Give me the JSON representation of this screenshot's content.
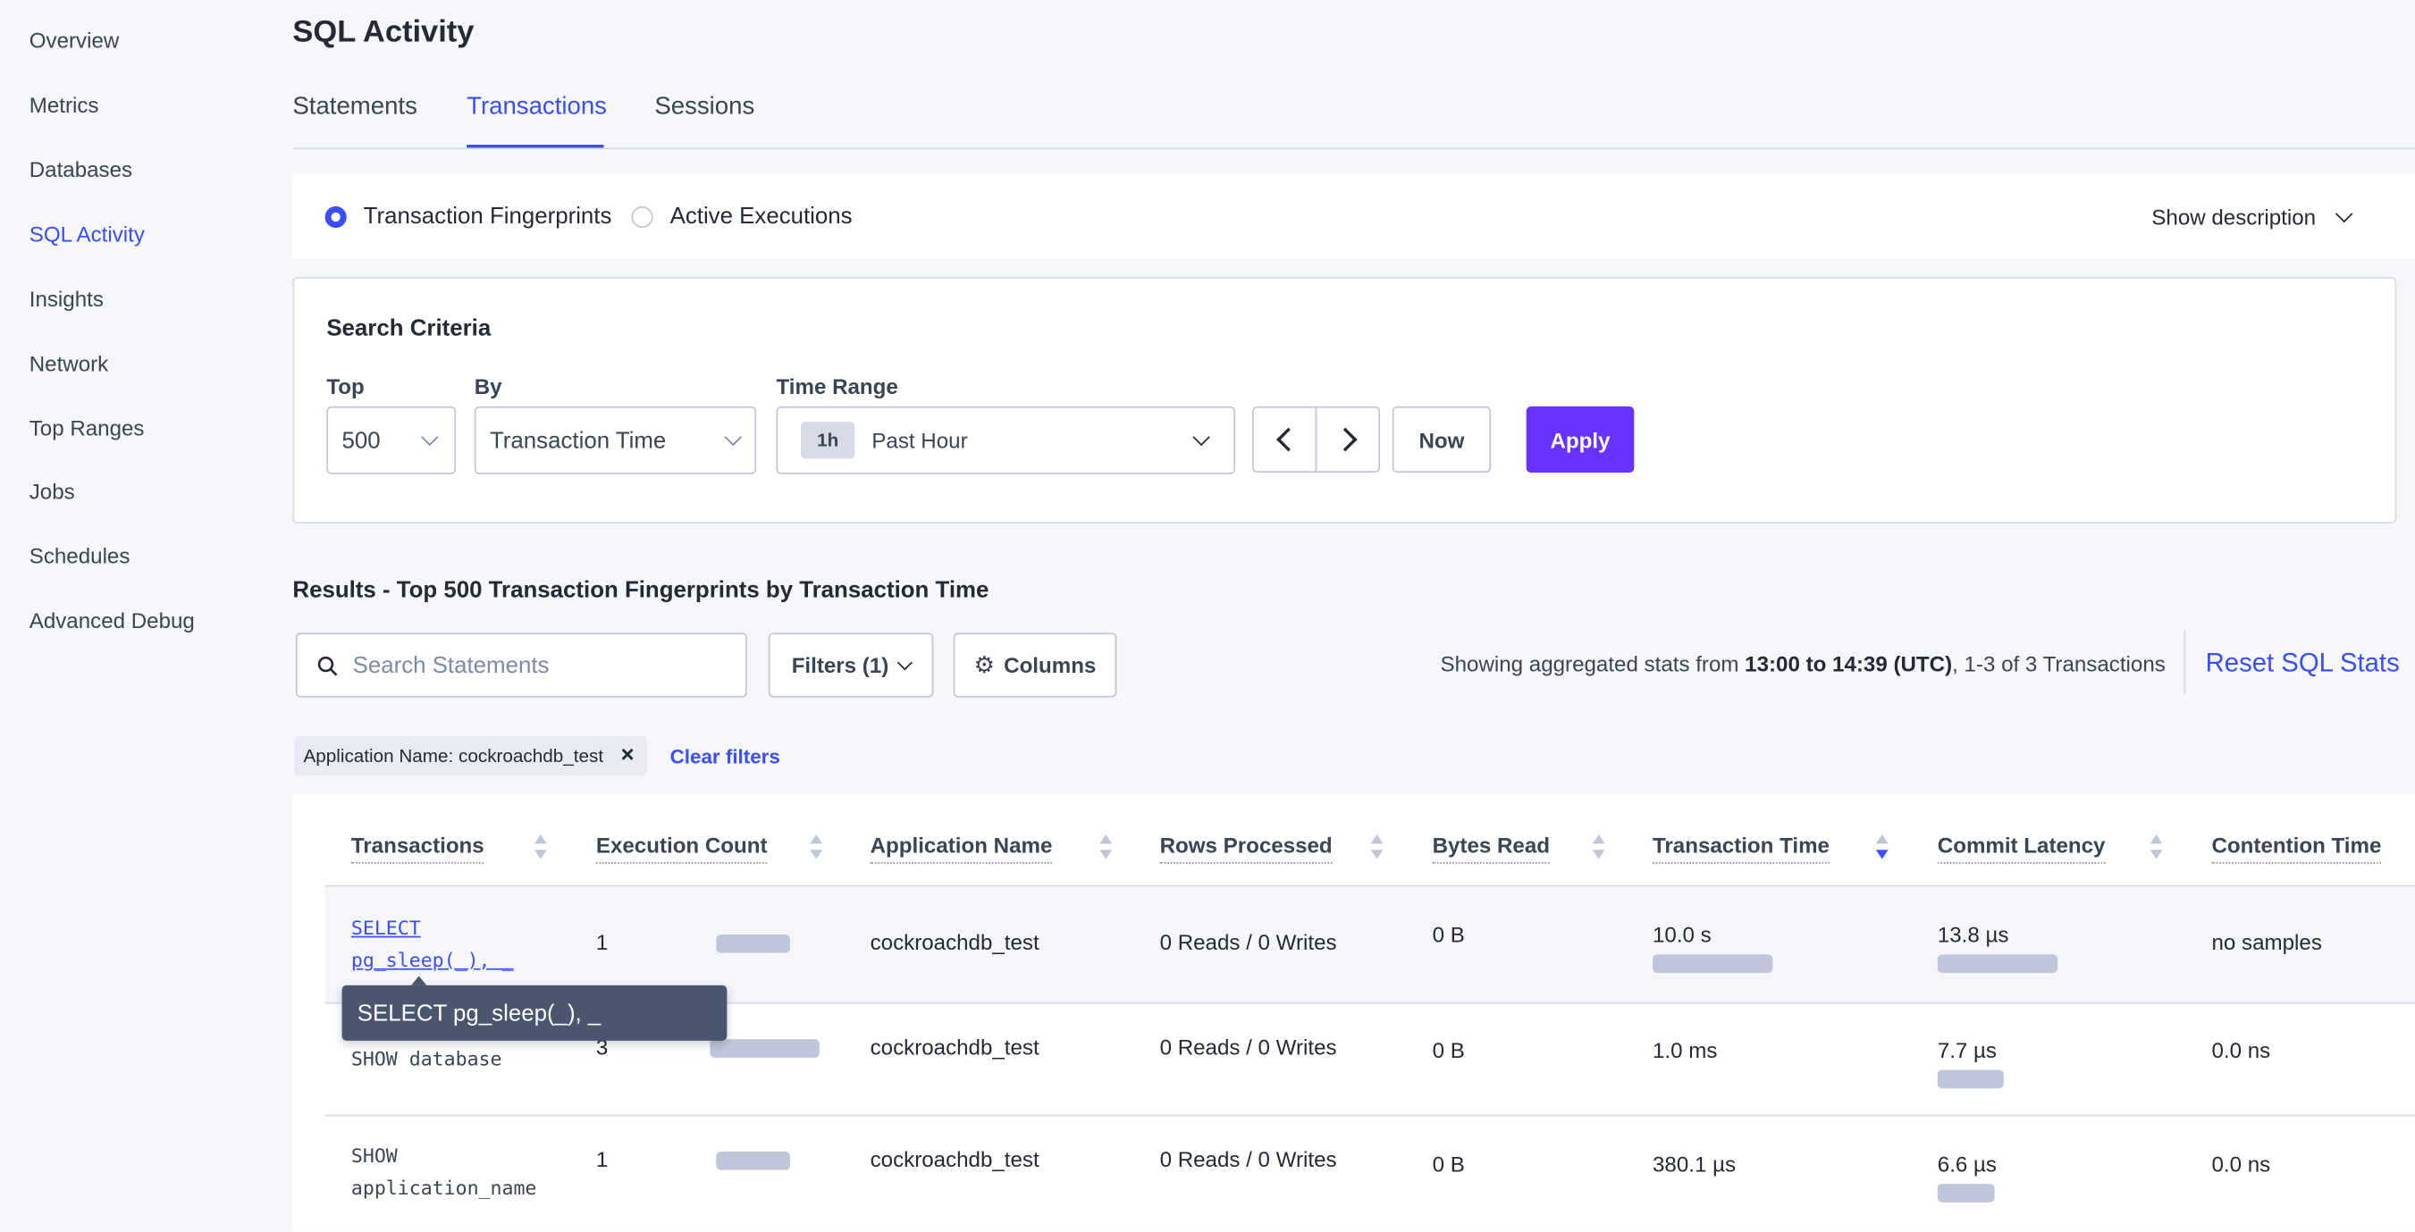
{
  "sidebar": {
    "items": [
      {
        "label": "Overview"
      },
      {
        "label": "Metrics"
      },
      {
        "label": "Databases"
      },
      {
        "label": "SQL Activity",
        "active": true
      },
      {
        "label": "Insights"
      },
      {
        "label": "Network"
      },
      {
        "label": "Top Ranges"
      },
      {
        "label": "Jobs"
      },
      {
        "label": "Schedules"
      },
      {
        "label": "Advanced Debug"
      }
    ]
  },
  "header": {
    "title": "SQL Activity"
  },
  "tabs": [
    {
      "label": "Statements"
    },
    {
      "label": "Transactions",
      "active": true
    },
    {
      "label": "Sessions"
    }
  ],
  "view": {
    "option1": "Transaction Fingerprints",
    "option2": "Active Executions",
    "selected": "Transaction Fingerprints",
    "show_description": "Show description"
  },
  "search_criteria": {
    "title": "Search Criteria",
    "top_label": "Top",
    "top_value": "500",
    "by_label": "By",
    "by_value": "Transaction Time",
    "time_range_label": "Time Range",
    "time_badge": "1h",
    "time_value": "Past Hour",
    "now_label": "Now",
    "apply_label": "Apply"
  },
  "results": {
    "heading": "Results - Top 500 Transaction Fingerprints by Transaction Time",
    "search_placeholder": "Search Statements",
    "filters_label": "Filters (1)",
    "columns_label": "Columns",
    "stats_prefix": "Showing aggregated stats from ",
    "stats_range": "13:00 to 14:39 (UTC)",
    "stats_suffix": ", 1-3 of 3 Transactions",
    "reset_label": "Reset SQL Stats",
    "chip": "Application Name: cockroachdb_test",
    "clear_filters": "Clear filters"
  },
  "table": {
    "columns": [
      "Transactions",
      "Execution Count",
      "Application Name",
      "Rows Processed",
      "Bytes Read",
      "Transaction Time",
      "Commit Latency",
      "Contention Time"
    ],
    "sorted_column": "Transaction Time",
    "sort_direction": "descending",
    "rows": [
      {
        "txn_line1": "SELECT",
        "txn_line2": "pg_sleep(_), _",
        "exec_count": "1",
        "app": "cockroachdb_test",
        "rows": "0 Reads / 0 Writes",
        "bytes": "0 B",
        "txn_time": "10.0 s",
        "commit": "13.8 µs",
        "contention": "no samples"
      },
      {
        "txn_line1": "SHOW database",
        "txn_line2": "",
        "exec_count": "3",
        "app": "cockroachdb_test",
        "rows": "0 Reads / 0 Writes",
        "bytes": "0 B",
        "txn_time": "1.0 ms",
        "commit": "7.7 µs",
        "contention": "0.0 ns"
      },
      {
        "txn_line1": "SHOW",
        "txn_line2": "application_name",
        "exec_count": "1",
        "app": "cockroachdb_test",
        "rows": "0 Reads / 0 Writes",
        "bytes": "0 B",
        "txn_time": "380.1 µs",
        "commit": "6.6 µs",
        "contention": "0.0 ns"
      }
    ]
  },
  "tooltip": {
    "text": "SELECT pg_sleep(_), _"
  },
  "colors": {
    "accent": "#3a4dff",
    "apply": "#6933ff",
    "bar": "#c0c6d9",
    "tooltip": "#4a5570"
  }
}
